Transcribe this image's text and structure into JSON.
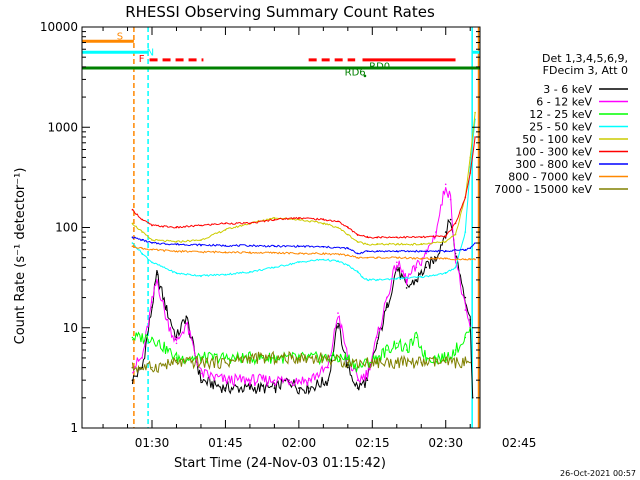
{
  "chart_data": {
    "type": "line",
    "title": "RHESSI Observing Summary Count Rates",
    "xlabel": "Start Time (24-Nov-03 01:15:42)",
    "ylabel": "Count Rate (s⁻¹ detector⁻¹)",
    "yscale": "log",
    "ylim": [
      1,
      10000
    ],
    "xlim_minutes": [
      15.7,
      97
    ],
    "x_ticks": [
      {
        "m": 30,
        "label": "01:30"
      },
      {
        "m": 45,
        "label": "01:45"
      },
      {
        "m": 60,
        "label": "02:00"
      },
      {
        "m": 75,
        "label": "02:15"
      },
      {
        "m": 90,
        "label": "02:30"
      },
      {
        "m": 105,
        "label": "02:45"
      }
    ],
    "y_ticks": [
      {
        "v": 1,
        "label": "1"
      },
      {
        "v": 10,
        "label": "10"
      },
      {
        "v": 100,
        "label": "100"
      },
      {
        "v": 1000,
        "label": "1000"
      },
      {
        "v": 10000,
        "label": "10000"
      }
    ],
    "legend_header": [
      "Det 1,3,4,5,6,9,",
      "FDecim 3, Att 0"
    ],
    "series": [
      {
        "name": "3 - 6 keV",
        "color": "#000000",
        "x": [
          26,
          28,
          30,
          31,
          33,
          35,
          37,
          40,
          45,
          50,
          55,
          58,
          60,
          62,
          66,
          68,
          70,
          72,
          74,
          76,
          78,
          80,
          82,
          84,
          86,
          88,
          90,
          91,
          92,
          94,
          95,
          95.5
        ],
        "y": [
          3,
          4,
          16,
          34,
          15,
          8,
          13,
          3,
          2.5,
          2.5,
          2.5,
          3,
          2.5,
          2.5,
          3,
          11,
          4,
          2.5,
          3,
          7,
          16,
          40,
          25,
          30,
          40,
          50,
          90,
          120,
          55,
          20,
          12,
          2
        ]
      },
      {
        "name": "6 - 12 keV",
        "color": "#ff00ff",
        "x": [
          26,
          28,
          30,
          31,
          33,
          35,
          37,
          40,
          45,
          50,
          55,
          58,
          60,
          62,
          66,
          68,
          70,
          72,
          74,
          76,
          78,
          80,
          82,
          84,
          86,
          88,
          90,
          91,
          92,
          94,
          95
        ],
        "y": [
          4,
          5,
          18,
          30,
          12,
          7,
          11,
          3.5,
          3,
          3,
          3,
          3,
          3,
          3,
          4,
          14,
          5,
          3,
          3.5,
          8,
          20,
          45,
          30,
          40,
          55,
          90,
          270,
          190,
          50,
          15,
          10
        ]
      },
      {
        "name": "12 - 25 keV",
        "color": "#00ff00",
        "x": [
          26,
          30,
          35,
          40,
          45,
          50,
          55,
          60,
          65,
          70,
          72,
          74,
          76,
          78,
          80,
          82,
          84,
          86,
          88,
          90,
          92,
          94,
          95
        ],
        "y": [
          8,
          8,
          5,
          5,
          5,
          5,
          5,
          5,
          5,
          5,
          4,
          4.5,
          5,
          6,
          7,
          6,
          8,
          5,
          5,
          5,
          6,
          8,
          10
        ]
      },
      {
        "name": "25 - 50 keV",
        "color": "#00ffff",
        "x": [
          26,
          28,
          30,
          35,
          40,
          45,
          50,
          55,
          60,
          65,
          68,
          70,
          72,
          73,
          74,
          76,
          80,
          85,
          90,
          92,
          94,
          95,
          96
        ],
        "y": [
          70,
          55,
          45,
          35,
          33,
          34,
          36,
          40,
          45,
          48,
          46,
          42,
          36,
          32,
          30,
          30,
          31,
          32,
          35,
          40,
          90,
          400,
          1200
        ]
      },
      {
        "name": "50 - 100 keV",
        "color": "#cccc00",
        "x": [
          26,
          28,
          30,
          35,
          40,
          45,
          50,
          55,
          60,
          65,
          68,
          70,
          72,
          74,
          76,
          80,
          85,
          90,
          92,
          94,
          95,
          96
        ],
        "y": [
          110,
          90,
          75,
          72,
          75,
          95,
          110,
          125,
          120,
          110,
          100,
          85,
          72,
          68,
          68,
          68,
          68,
          72,
          85,
          200,
          500,
          1400
        ]
      },
      {
        "name": "100 - 300 keV",
        "color": "#ff0000",
        "x": [
          26,
          28,
          30,
          35,
          40,
          45,
          50,
          55,
          60,
          65,
          68,
          70,
          72,
          74,
          76,
          80,
          85,
          90,
          92,
          94,
          95,
          96
        ],
        "y": [
          150,
          120,
          105,
          100,
          105,
          110,
          110,
          120,
          125,
          120,
          115,
          100,
          85,
          80,
          80,
          80,
          80,
          82,
          110,
          200,
          350,
          800
        ]
      },
      {
        "name": "300 - 800 keV",
        "color": "#0000ff",
        "x": [
          26,
          28,
          30,
          35,
          40,
          45,
          50,
          55,
          60,
          65,
          70,
          72,
          74,
          76,
          80,
          85,
          90,
          94,
          95,
          96
        ],
        "y": [
          80,
          75,
          70,
          68,
          67,
          66,
          66,
          65,
          65,
          64,
          62,
          55,
          58,
          58,
          58,
          58,
          58,
          60,
          62,
          70
        ]
      },
      {
        "name": "800 - 7000 keV",
        "color": "#ff8800",
        "x": [
          26,
          28,
          30,
          35,
          40,
          45,
          50,
          55,
          60,
          65,
          70,
          72,
          74,
          76,
          80,
          85,
          90,
          94,
          95,
          96
        ],
        "y": [
          65,
          62,
          60,
          58,
          57,
          57,
          56,
          56,
          55,
          55,
          53,
          50,
          50,
          50,
          50,
          49,
          49,
          48,
          48,
          48
        ]
      },
      {
        "name": "7000 - 15000 keV",
        "color": "#808000",
        "x": [
          26,
          30,
          35,
          40,
          45,
          50,
          55,
          60,
          65,
          70,
          75,
          80,
          85,
          90,
          95
        ],
        "y": [
          4,
          4,
          4.5,
          4.5,
          4.5,
          5,
          5,
          5,
          5,
          4.5,
          4.5,
          4.5,
          4.5,
          4.5,
          4.5
        ]
      }
    ],
    "annotations": [
      {
        "text": "S",
        "color": "#ff8800"
      },
      {
        "text": "N",
        "color": "#00ffff"
      },
      {
        "text": "F",
        "color": "#ff0000"
      },
      {
        "text": "RD6",
        "color": "#008000"
      },
      {
        "text": "RD0",
        "color": "#008000"
      }
    ],
    "footer_timestamp": "26-Oct-2021 00:57"
  }
}
